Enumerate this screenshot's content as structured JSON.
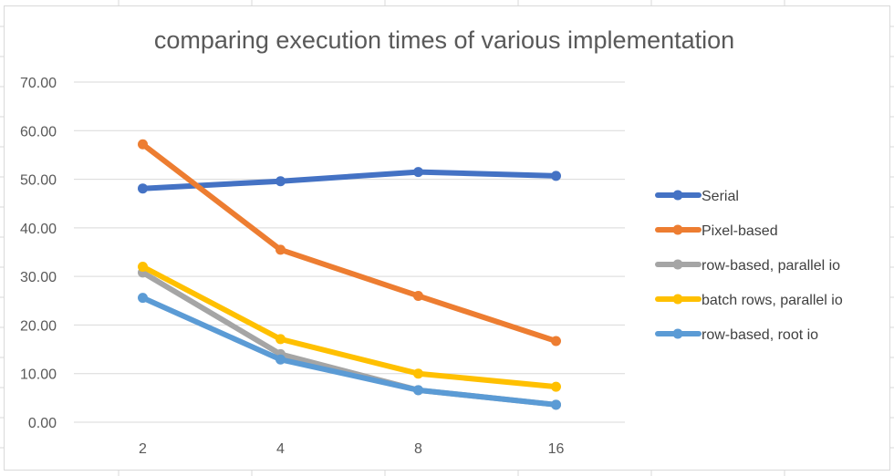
{
  "chart_data": {
    "type": "line",
    "title": "comparing execution times of various implementation",
    "xlabel": "",
    "ylabel": "",
    "categories": [
      "2",
      "4",
      "8",
      "16"
    ],
    "y_ticks": [
      "0.00",
      "10.00",
      "20.00",
      "30.00",
      "40.00",
      "50.00",
      "60.00",
      "70.00"
    ],
    "ylim": [
      0,
      70
    ],
    "grid": true,
    "legend_position": "right",
    "series": [
      {
        "name": "Serial",
        "color": "#4472C4",
        "values": [
          48.1,
          49.6,
          51.5,
          50.7
        ]
      },
      {
        "name": "Pixel-based",
        "color": "#ED7D31",
        "values": [
          57.2,
          35.5,
          26.0,
          16.7
        ]
      },
      {
        "name": "row-based, parallel io",
        "color": "#A5A5A5",
        "values": [
          30.8,
          14.0,
          6.6,
          3.6
        ]
      },
      {
        "name": "batch rows, parallel io",
        "color": "#FFC000",
        "values": [
          32.0,
          17.1,
          10.0,
          7.3
        ]
      },
      {
        "name": "row-based, root io",
        "color": "#5B9BD5",
        "values": [
          25.6,
          12.9,
          6.6,
          3.6
        ]
      }
    ]
  }
}
